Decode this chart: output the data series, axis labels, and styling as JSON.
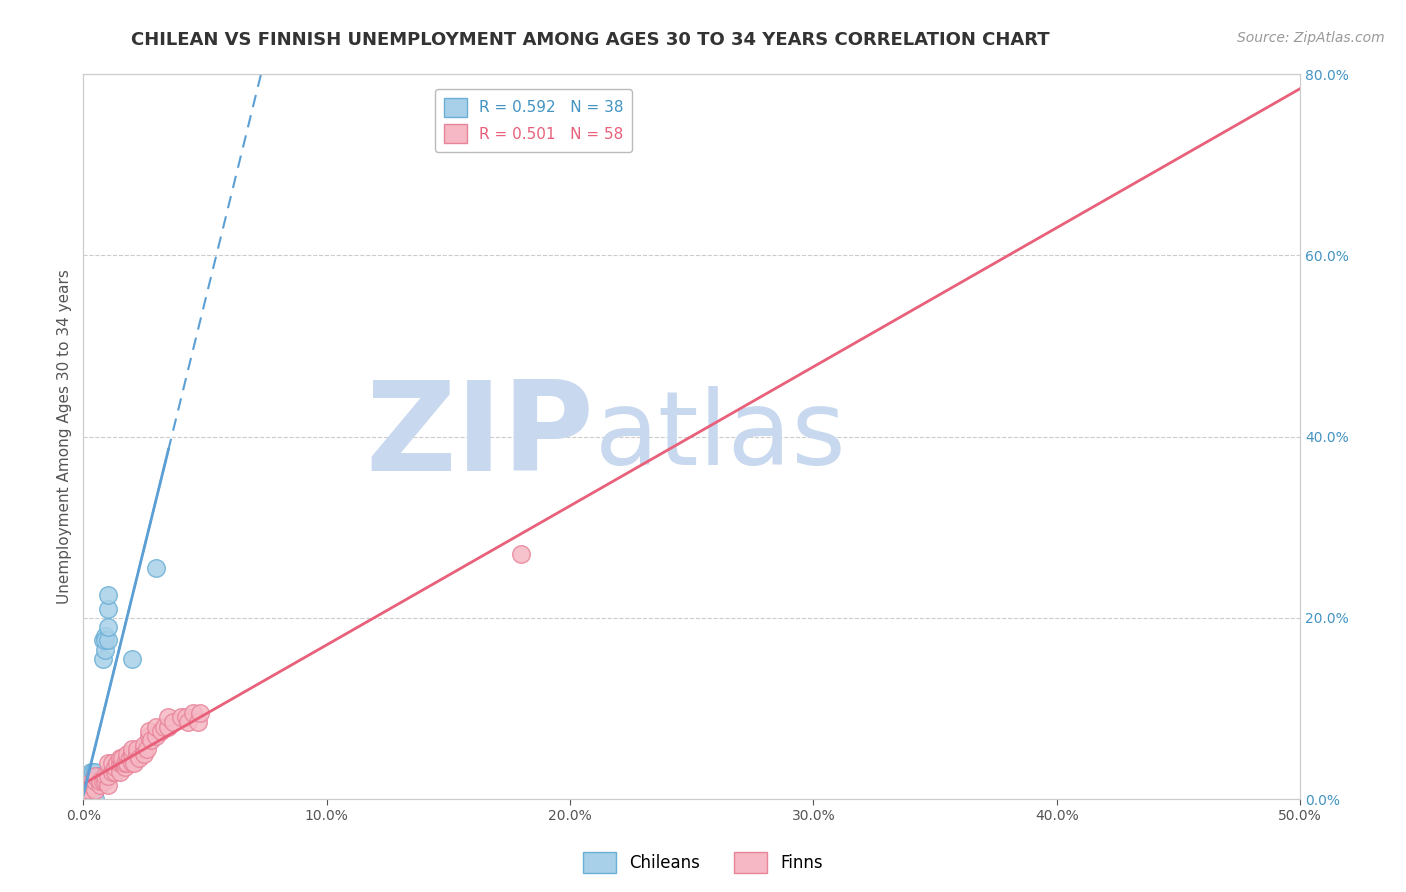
{
  "title": "CHILEAN VS FINNISH UNEMPLOYMENT AMONG AGES 30 TO 34 YEARS CORRELATION CHART",
  "source": "Source: ZipAtlas.com",
  "ylabel": "Unemployment Among Ages 30 to 34 years",
  "xlim": [
    0.0,
    0.5
  ],
  "ylim": [
    0.0,
    0.8
  ],
  "xticks": [
    0.0,
    0.1,
    0.2,
    0.3,
    0.4,
    0.5
  ],
  "xtick_labels": [
    "0.0%",
    "10.0%",
    "20.0%",
    "30.0%",
    "40.0%",
    "50.0%"
  ],
  "yticks_right": [
    0.0,
    0.2,
    0.4,
    0.6,
    0.8
  ],
  "ytick_labels_right": [
    "0.0%",
    "20.0%",
    "40.0%",
    "60.0%",
    "80.0%"
  ],
  "chilean_color": "#A8D0E8",
  "chilean_edge": "#6AAFD6",
  "finn_color": "#F5B8C4",
  "finn_edge": "#E8849A",
  "chilean_line_color": "#5B9FD4",
  "finn_line_color": "#E8607A",
  "watermark_zip": "ZIP",
  "watermark_atlas": "atlas",
  "watermark_color_zip": "#C8D8EE",
  "watermark_color_atlas": "#C8D8EE",
  "background_color": "#FFFFFF",
  "grid_color": "#CCCCCC",
  "chilean_points": [
    [
      0.0,
      0.005
    ],
    [
      0.0,
      0.01
    ],
    [
      0.0,
      0.02
    ],
    [
      0.0,
      0.025
    ],
    [
      0.001,
      0.005
    ],
    [
      0.001,
      0.01
    ],
    [
      0.001,
      0.015
    ],
    [
      0.001,
      0.02
    ],
    [
      0.002,
      0.005
    ],
    [
      0.002,
      0.01
    ],
    [
      0.002,
      0.015
    ],
    [
      0.002,
      0.02
    ],
    [
      0.003,
      0.01
    ],
    [
      0.003,
      0.015
    ],
    [
      0.003,
      0.02
    ],
    [
      0.003,
      0.03
    ],
    [
      0.004,
      0.015
    ],
    [
      0.004,
      0.02
    ],
    [
      0.004,
      0.03
    ],
    [
      0.005,
      0.02
    ],
    [
      0.005,
      0.025
    ],
    [
      0.005,
      0.03
    ],
    [
      0.006,
      0.015
    ],
    [
      0.006,
      0.025
    ],
    [
      0.007,
      0.02
    ],
    [
      0.007,
      0.025
    ],
    [
      0.008,
      0.155
    ],
    [
      0.008,
      0.175
    ],
    [
      0.009,
      0.18
    ],
    [
      0.009,
      0.165
    ],
    [
      0.009,
      0.175
    ],
    [
      0.01,
      0.175
    ],
    [
      0.01,
      0.19
    ],
    [
      0.01,
      0.21
    ],
    [
      0.01,
      0.225
    ],
    [
      0.02,
      0.155
    ],
    [
      0.03,
      0.255
    ],
    [
      0.005,
      0.0
    ]
  ],
  "finn_points": [
    [
      0.0,
      0.01
    ],
    [
      0.001,
      0.015
    ],
    [
      0.002,
      0.01
    ],
    [
      0.003,
      0.015
    ],
    [
      0.005,
      0.01
    ],
    [
      0.005,
      0.02
    ],
    [
      0.005,
      0.025
    ],
    [
      0.007,
      0.015
    ],
    [
      0.007,
      0.02
    ],
    [
      0.008,
      0.02
    ],
    [
      0.009,
      0.02
    ],
    [
      0.009,
      0.025
    ],
    [
      0.01,
      0.015
    ],
    [
      0.01,
      0.025
    ],
    [
      0.01,
      0.04
    ],
    [
      0.012,
      0.03
    ],
    [
      0.012,
      0.04
    ],
    [
      0.013,
      0.03
    ],
    [
      0.013,
      0.035
    ],
    [
      0.014,
      0.04
    ],
    [
      0.015,
      0.03
    ],
    [
      0.015,
      0.04
    ],
    [
      0.015,
      0.045
    ],
    [
      0.016,
      0.04
    ],
    [
      0.016,
      0.045
    ],
    [
      0.017,
      0.035
    ],
    [
      0.017,
      0.04
    ],
    [
      0.018,
      0.04
    ],
    [
      0.018,
      0.05
    ],
    [
      0.019,
      0.045
    ],
    [
      0.02,
      0.04
    ],
    [
      0.02,
      0.05
    ],
    [
      0.02,
      0.055
    ],
    [
      0.021,
      0.04
    ],
    [
      0.022,
      0.05
    ],
    [
      0.022,
      0.055
    ],
    [
      0.023,
      0.045
    ],
    [
      0.025,
      0.055
    ],
    [
      0.025,
      0.06
    ],
    [
      0.025,
      0.05
    ],
    [
      0.026,
      0.055
    ],
    [
      0.027,
      0.07
    ],
    [
      0.027,
      0.075
    ],
    [
      0.028,
      0.065
    ],
    [
      0.03,
      0.07
    ],
    [
      0.03,
      0.08
    ],
    [
      0.032,
      0.075
    ],
    [
      0.033,
      0.08
    ],
    [
      0.035,
      0.08
    ],
    [
      0.035,
      0.09
    ],
    [
      0.037,
      0.085
    ],
    [
      0.04,
      0.09
    ],
    [
      0.042,
      0.09
    ],
    [
      0.043,
      0.085
    ],
    [
      0.045,
      0.095
    ],
    [
      0.047,
      0.085
    ],
    [
      0.048,
      0.095
    ],
    [
      0.18,
      0.27
    ]
  ],
  "title_fontsize": 13,
  "axis_label_fontsize": 11,
  "tick_fontsize": 10,
  "legend_fontsize": 11,
  "source_fontsize": 10
}
